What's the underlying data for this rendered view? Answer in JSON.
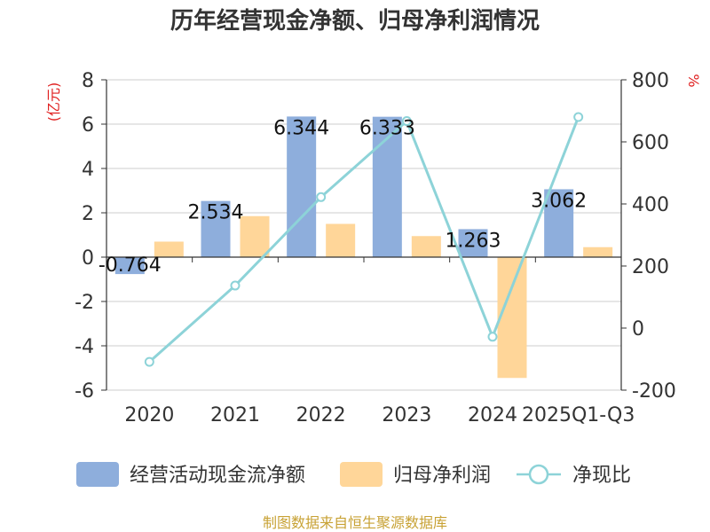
{
  "chart_data": {
    "type": "bar",
    "title": "历年经营现金净额、归母净利润情况",
    "categories": [
      "2020",
      "2021",
      "2022",
      "2023",
      "2024",
      "2025Q1-Q3"
    ],
    "series": [
      {
        "name": "经营活动现金流净额",
        "type": "bar",
        "axis": "left",
        "color": "#8EAEDC",
        "values": [
          -0.764,
          2.534,
          6.344,
          6.333,
          1.263,
          3.062
        ],
        "labels": [
          "-0.764",
          "2.534",
          "6.344",
          "6.333",
          "1.263",
          "3.062"
        ]
      },
      {
        "name": "归母净利润",
        "type": "bar",
        "axis": "left",
        "color": "#FFD699",
        "values": [
          0.7,
          1.85,
          1.5,
          0.95,
          -5.45,
          0.45
        ]
      },
      {
        "name": "净现比",
        "type": "line",
        "axis": "right",
        "color": "#8DD3D8",
        "values": [
          -109,
          137,
          422,
          667,
          -28,
          680
        ]
      }
    ],
    "y_left": {
      "unit": "(亿元)",
      "ylim": [
        -6,
        8
      ],
      "ticks": [
        "-6",
        "-4",
        "-2",
        "0",
        "2",
        "4",
        "6",
        "8"
      ]
    },
    "y_right": {
      "unit": "%",
      "ylim": [
        -200,
        800
      ],
      "ticks": [
        "-200",
        "0",
        "200",
        "400",
        "600",
        "800"
      ]
    },
    "grid": true,
    "legend": "bottom",
    "unit_color": "#E02020"
  },
  "source": {
    "text": "制图数据来自恒生聚源数据库",
    "color": "#C8A235"
  }
}
